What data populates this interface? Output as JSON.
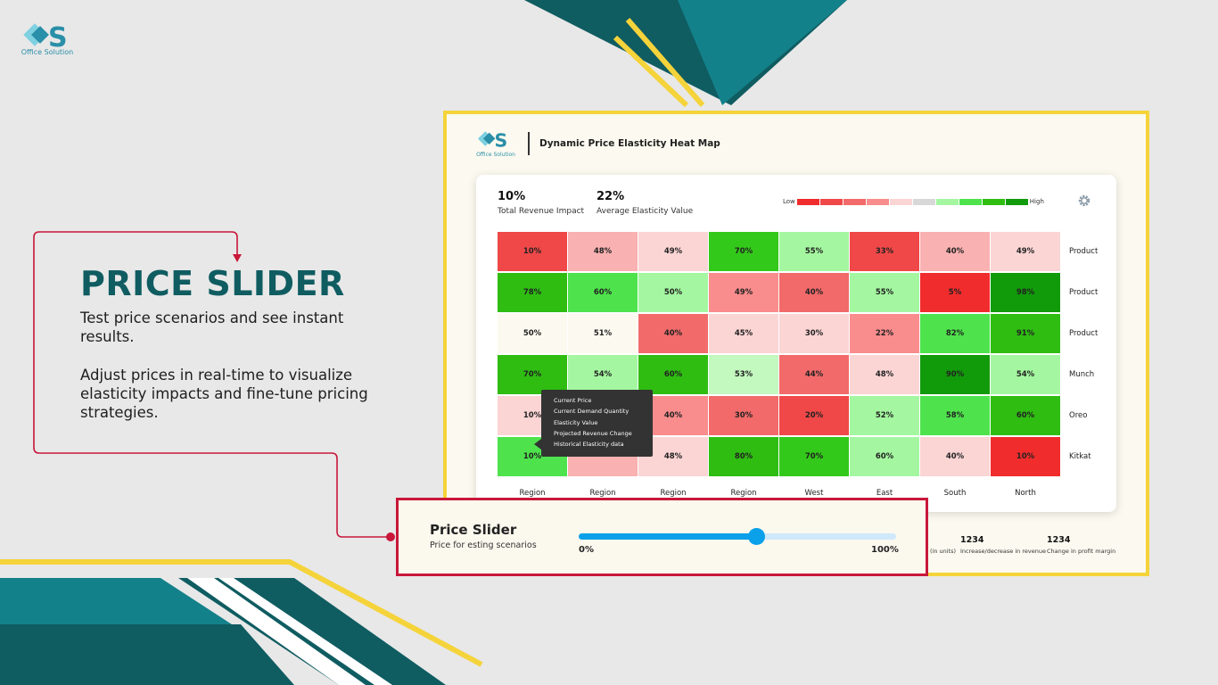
{
  "brand": {
    "name": "Office Solution"
  },
  "hero": {
    "title": "PRICE SLIDER",
    "desc1": "Test price scenarios and see instant results.",
    "desc2": "Adjust prices in real-time to visualize elasticity impacts and fine-tune pricing strategies."
  },
  "dashboard": {
    "brand": "Office Solution",
    "title": "Dynamic Price Elasticity Heat Map",
    "kpis": [
      {
        "value": "10%",
        "label": "Total Revenue Impact"
      },
      {
        "value": "22%",
        "label": "Average Elasticity Value"
      }
    ],
    "legend": {
      "low": "Low",
      "high": "High"
    },
    "row_labels": [
      "Product",
      "Product",
      "Product",
      "Munch",
      "Oreo",
      "Kitkat"
    ],
    "col_labels": [
      "Region",
      "Region",
      "Region",
      "Region",
      "West",
      "East",
      "South",
      "North"
    ],
    "heatmap": [
      [
        {
          "v": "10%",
          "c": "#f04848"
        },
        {
          "v": "48%",
          "c": "#f9b1b1"
        },
        {
          "v": "49%",
          "c": "#fbd4d4"
        },
        {
          "v": "70%",
          "c": "#33c91a"
        },
        {
          "v": "55%",
          "c": "#a4f7a0"
        },
        {
          "v": "33%",
          "c": "#f04848"
        },
        {
          "v": "40%",
          "c": "#f9b1b1"
        },
        {
          "v": "49%",
          "c": "#fbd4d4"
        }
      ],
      [
        {
          "v": "78%",
          "c": "#2fbd12"
        },
        {
          "v": "60%",
          "c": "#4ee34c"
        },
        {
          "v": "50%",
          "c": "#a4f7a0"
        },
        {
          "v": "49%",
          "c": "#f98c8c"
        },
        {
          "v": "40%",
          "c": "#f26a6a"
        },
        {
          "v": "55%",
          "c": "#a4f7a0"
        },
        {
          "v": "5%",
          "c": "#f12c2c"
        },
        {
          "v": "98%",
          "c": "#119a0a"
        }
      ],
      [
        {
          "v": "50%",
          "c": "#fcfaf0"
        },
        {
          "v": "51%",
          "c": "#fcfaf0"
        },
        {
          "v": "40%",
          "c": "#f26a6a"
        },
        {
          "v": "45%",
          "c": "#fbd4d4"
        },
        {
          "v": "30%",
          "c": "#fbd4d4"
        },
        {
          "v": "22%",
          "c": "#f98c8c"
        },
        {
          "v": "82%",
          "c": "#4ee34c"
        },
        {
          "v": "91%",
          "c": "#2fbd12"
        }
      ],
      [
        {
          "v": "70%",
          "c": "#2fbd12"
        },
        {
          "v": "54%",
          "c": "#a4f7a0"
        },
        {
          "v": "60%",
          "c": "#2fbd12"
        },
        {
          "v": "53%",
          "c": "#c3f8bf"
        },
        {
          "v": "44%",
          "c": "#f26a6a"
        },
        {
          "v": "48%",
          "c": "#fbd4d4"
        },
        {
          "v": "90%",
          "c": "#119a0a"
        },
        {
          "v": "54%",
          "c": "#a4f7a0"
        }
      ],
      [
        {
          "v": "10%",
          "c": "#fbd4d4"
        },
        {
          "v": "",
          "c": "#fbd4d4"
        },
        {
          "v": "40%",
          "c": "#f98c8c"
        },
        {
          "v": "30%",
          "c": "#f26a6a"
        },
        {
          "v": "20%",
          "c": "#f04848"
        },
        {
          "v": "52%",
          "c": "#a4f7a0"
        },
        {
          "v": "58%",
          "c": "#4ee34c"
        },
        {
          "v": "60%",
          "c": "#2fbd12"
        }
      ],
      [
        {
          "v": "10%",
          "c": "#4ee34c"
        },
        {
          "v": "",
          "c": "#f9b1b1"
        },
        {
          "v": "48%",
          "c": "#fbd4d4"
        },
        {
          "v": "80%",
          "c": "#2fbd12"
        },
        {
          "v": "70%",
          "c": "#33c91a"
        },
        {
          "v": "60%",
          "c": "#a4f7a0"
        },
        {
          "v": "40%",
          "c": "#fbd4d4"
        },
        {
          "v": "10%",
          "c": "#f12c2c"
        }
      ]
    ],
    "tooltip": [
      "Current Price",
      "Current Demand Quantity",
      "Elasticity Value",
      "Projected Revenue Change",
      "Historical Elasticity data"
    ],
    "stats": [
      {
        "value": "",
        "label": "(in units)"
      },
      {
        "value": "1234",
        "label": "Increase/decrease in revenue"
      },
      {
        "value": "1234",
        "label": "Change in profit margin"
      }
    ]
  },
  "slider": {
    "title": "Price Slider",
    "subtitle": "Price for esting scenarios",
    "min_label": "0%",
    "max_label": "100%",
    "value": 56
  },
  "colors": {
    "teal_dark": "#0f5c61",
    "teal": "#13818a",
    "yellow": "#f5d33a",
    "crimson": "#c8173a",
    "slider_blue": "#0aa0ea"
  }
}
